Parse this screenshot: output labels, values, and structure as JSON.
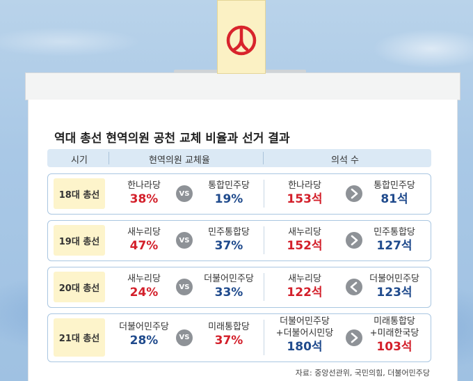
{
  "chart_data": {
    "type": "table",
    "title": "역대 총선 현역의원 공천 교체 비율과 선거 결과",
    "columns": [
      "시기",
      "현역의원 교체율",
      "의석 수"
    ],
    "rows": [
      {
        "era": "18대 총선",
        "rate": {
          "left_party": "한나라당",
          "left_value": "38%",
          "right_party": "통합민주당",
          "right_value": "19%"
        },
        "seats": {
          "left_party": "한나라당",
          "left_value": "153석",
          "right_party": "통합민주당",
          "right_value": "81석",
          "relation": ">"
        }
      },
      {
        "era": "19대 총선",
        "rate": {
          "left_party": "새누리당",
          "left_value": "47%",
          "right_party": "민주통합당",
          "right_value": "37%"
        },
        "seats": {
          "left_party": "새누리당",
          "left_value": "152석",
          "right_party": "민주통합당",
          "right_value": "127석",
          "relation": ">"
        }
      },
      {
        "era": "20대 총선",
        "rate": {
          "left_party": "새누리당",
          "left_value": "24%",
          "right_party": "더불어민주당",
          "right_value": "33%"
        },
        "seats": {
          "left_party": "새누리당",
          "left_value": "122석",
          "right_party": "더불어민주당",
          "right_value": "123석",
          "relation": "<"
        }
      },
      {
        "era": "21대 총선",
        "rate": {
          "left_party": "더불어민주당",
          "left_value": "28%",
          "right_party": "미래통합당",
          "right_value": "37%"
        },
        "seats": {
          "left_party": "더불어민주당\n+더불어시민당",
          "left_value": "180석",
          "right_party": "미래통합당\n+미래한국당",
          "right_value": "103석",
          "relation": ">"
        }
      }
    ],
    "vs_label": "VS",
    "source": "자료: 중앙선관위, 국민의힘, 더불어민주당"
  },
  "colors": {
    "conservative": "#d31f2a",
    "democratic": "#1f4a8c",
    "era_bg": "#fdf4cb",
    "header_bg": "#dbe9f5",
    "border": "#a9c6e1",
    "circle": "#8e9297"
  }
}
